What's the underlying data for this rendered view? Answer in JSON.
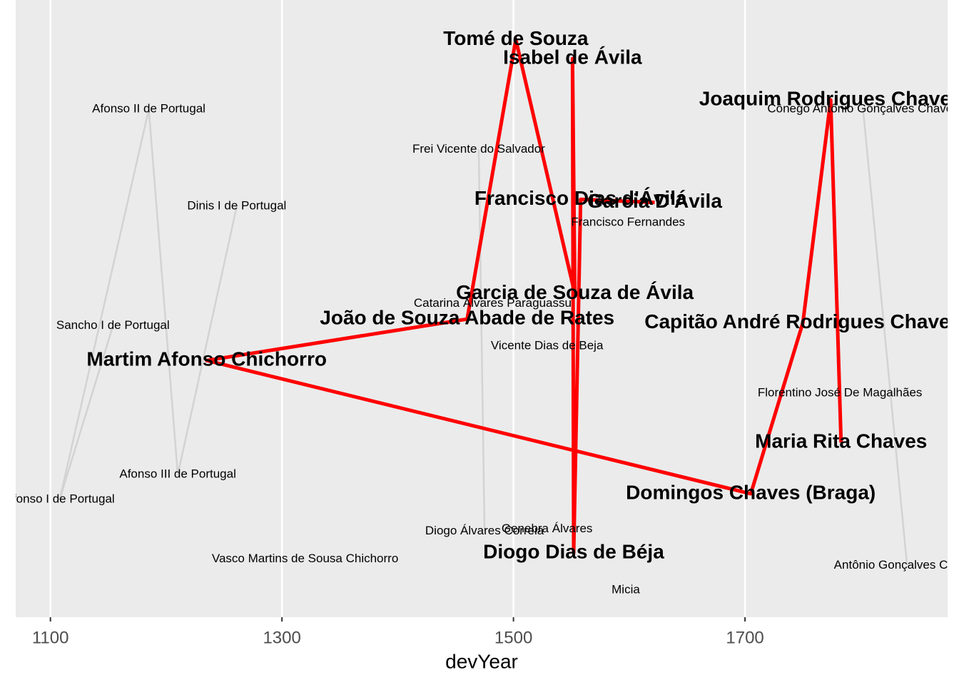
{
  "chart_data": {
    "type": "labeled-path",
    "x_label": "devYear",
    "xlim": [
      1070,
      1875
    ],
    "xticks": [
      1100,
      1300,
      1500,
      1700
    ],
    "ylim": [
      0,
      100
    ],
    "grid": true,
    "series": [
      {
        "color": "#ff0000",
        "bold": true,
        "line": true,
        "labels": [
          "Maria Rita Chaves",
          "Joaquim Rodrigues Chaves",
          "Capitão André Rodrigues Chaves",
          "Domingos Chaves (Braga)",
          "Martim Afonso Chichorro",
          "João de Souza Abade de Rates",
          "Tomé de Souza",
          "Garcia de Souza de Ávila",
          "Isabel de Ávila",
          "Diogo Dias de Béja",
          "Francisco Dias d'Ávila",
          "Garcia D'Ávila"
        ],
        "x": [
          1783,
          1774,
          1750,
          1705,
          1235,
          1460,
          1502,
          1553,
          1551,
          1552,
          1558,
          1622
        ],
        "values": [
          28.3,
          83.8,
          47.7,
          20,
          41.6,
          48.3,
          93.6,
          52.4,
          90.5,
          10.4,
          67.7,
          67.2
        ]
      },
      {
        "color": "#d3d3d3",
        "bold": false,
        "line": true,
        "labels": [
          "Sancho I de Portugal",
          "Afonso I de Portugal",
          "Afonso II de Portugal",
          "Afonso III de Portugal",
          "Dinis I de Portugal"
        ],
        "x": [
          1154,
          1108,
          1185,
          1210,
          1261
        ],
        "values": [
          47.2,
          19.1,
          82.3,
          23.1,
          66.6
        ]
      },
      {
        "color": "#d3d3d3",
        "bold": false,
        "line": true,
        "labels": [
          "Frei Vicente do Salvador",
          "Diogo Álvares Correia"
        ],
        "x": [
          1470,
          1475
        ],
        "values": [
          75.8,
          13.9
        ]
      },
      {
        "color": "#d3d3d3",
        "bold": false,
        "line": true,
        "labels": [
          "Cônego Antônio Gonçalves Chaves",
          "Antônio Gonçalves Chaves"
        ],
        "x": [
          1802,
          1840
        ],
        "values": [
          82.3,
          8.4
        ]
      },
      {
        "color": "#d3d3d3",
        "bold": false,
        "line": false,
        "labels": [
          "Catarina Álvares Paraguassu",
          "Vicente Dias de Beja",
          "Genebra Álvares",
          "Micia",
          "Vasco Martins de Sousa Chichorro",
          "Francisco Fernandes",
          "Florentino José De Magalhães"
        ],
        "x": [
          1482,
          1529,
          1529,
          1597,
          1320,
          1599,
          1782
        ],
        "values": [
          50.8,
          43.9,
          14.3,
          4.4,
          9.4,
          63.9,
          36.3
        ]
      }
    ]
  }
}
